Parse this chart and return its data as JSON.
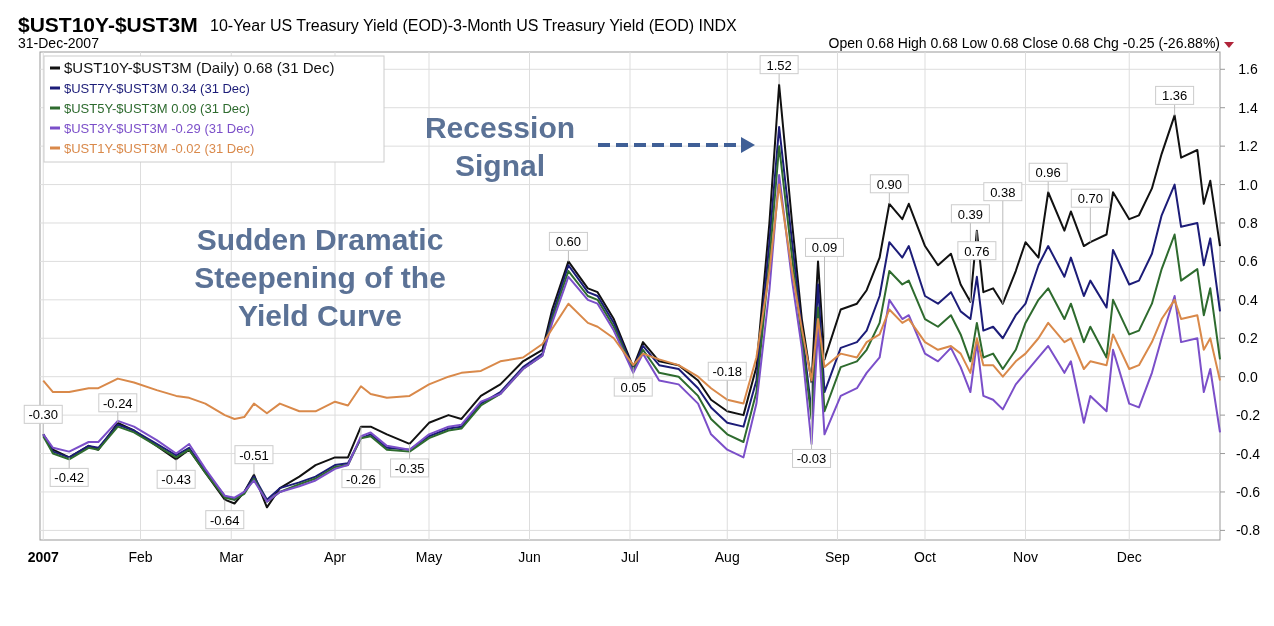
{
  "chart_data": {
    "type": "line",
    "title": "$UST10Y-$UST3M",
    "subtitle": "10-Year US Treasury Yield (EOD)-3-Month US Treasury Yield (EOD) INDX",
    "annotations": [
      "31-Dec-2007",
      "Open 0.68 High 0.68 Low 0.68 Close 0.68 Chg -0.25 (-26.88%)",
      "Sudden Dramatic Steepening of the Yield Curve",
      "Recession Signal"
    ],
    "x": [
      "2007-01-02",
      "2007-01-05",
      "2007-01-10",
      "2007-01-16",
      "2007-01-19",
      "2007-01-25",
      "2007-01-30",
      "2007-02-06",
      "2007-02-12",
      "2007-02-16",
      "2007-02-21",
      "2007-02-27",
      "2007-03-02",
      "2007-03-05",
      "2007-03-08",
      "2007-03-12",
      "2007-03-16",
      "2007-03-22",
      "2007-03-27",
      "2007-04-02",
      "2007-04-06",
      "2007-04-10",
      "2007-04-13",
      "2007-04-18",
      "2007-04-25",
      "2007-05-01",
      "2007-05-07",
      "2007-05-11",
      "2007-05-17",
      "2007-05-23",
      "2007-05-30",
      "2007-06-05",
      "2007-06-08",
      "2007-06-13",
      "2007-06-19",
      "2007-06-22",
      "2007-06-27",
      "2007-07-03",
      "2007-07-06",
      "2007-07-11",
      "2007-07-17",
      "2007-07-23",
      "2007-07-27",
      "2007-08-01",
      "2007-08-06",
      "2007-08-10",
      "2007-08-14",
      "2007-08-17",
      "2007-08-21",
      "2007-08-24",
      "2007-08-27",
      "2007-08-29",
      "2007-08-31",
      "2007-09-05",
      "2007-09-10",
      "2007-09-13",
      "2007-09-17",
      "2007-09-20",
      "2007-09-24",
      "2007-09-26",
      "2007-10-01",
      "2007-10-05",
      "2007-10-09",
      "2007-10-12",
      "2007-10-15",
      "2007-10-17",
      "2007-10-19",
      "2007-10-22",
      "2007-10-25",
      "2007-10-29",
      "2007-11-01",
      "2007-11-05",
      "2007-11-08",
      "2007-11-13",
      "2007-11-15",
      "2007-11-19",
      "2007-11-21",
      "2007-11-26",
      "2007-11-28",
      "2007-12-03",
      "2007-12-06",
      "2007-12-10",
      "2007-12-13",
      "2007-12-17",
      "2007-12-19",
      "2007-12-24",
      "2007-12-26",
      "2007-12-28",
      "2007-12-31"
    ],
    "series": [
      {
        "name": "$UST10Y-$UST3M (Daily) 0.68 (31 Dec)",
        "color": "#111111",
        "values": [
          -0.3,
          -0.38,
          -0.42,
          -0.36,
          -0.38,
          -0.24,
          -0.28,
          -0.36,
          -0.43,
          -0.38,
          -0.5,
          -0.64,
          -0.66,
          -0.6,
          -0.51,
          -0.68,
          -0.58,
          -0.52,
          -0.46,
          -0.42,
          -0.42,
          -0.26,
          -0.26,
          -0.3,
          -0.35,
          -0.24,
          -0.2,
          -0.22,
          -0.1,
          -0.04,
          0.08,
          0.14,
          0.35,
          0.6,
          0.46,
          0.44,
          0.3,
          0.05,
          0.18,
          0.08,
          0.06,
          -0.02,
          -0.12,
          -0.18,
          -0.2,
          0.05,
          0.8,
          1.52,
          0.8,
          0.3,
          -0.03,
          0.6,
          0.09,
          0.35,
          0.38,
          0.45,
          0.62,
          0.9,
          0.82,
          0.9,
          0.68,
          0.58,
          0.64,
          0.48,
          0.39,
          0.76,
          0.44,
          0.46,
          0.38,
          0.55,
          0.7,
          0.62,
          0.96,
          0.76,
          0.86,
          0.68,
          0.7,
          0.74,
          0.96,
          0.82,
          0.84,
          0.98,
          1.16,
          1.36,
          1.14,
          1.18,
          0.9,
          1.02,
          0.68
        ],
        "value_labels": [
          "-0.30",
          null,
          "-0.42",
          null,
          null,
          "-0.24",
          null,
          null,
          "-0.43",
          null,
          null,
          "-0.64",
          null,
          null,
          "-0.51",
          null,
          null,
          null,
          null,
          null,
          null,
          "-0.26",
          null,
          null,
          "-0.35",
          null,
          null,
          null,
          null,
          null,
          null,
          null,
          null,
          "0.60",
          null,
          null,
          null,
          "0.05",
          null,
          null,
          null,
          null,
          null,
          "-0.18",
          null,
          null,
          null,
          "1.52",
          null,
          null,
          "-0.03",
          null,
          "0.09",
          null,
          null,
          null,
          null,
          "0.90",
          null,
          null,
          null,
          null,
          null,
          null,
          "0.39",
          "0.76",
          null,
          null,
          "0.38",
          null,
          null,
          null,
          "0.96",
          null,
          null,
          null,
          "0.70",
          null,
          null,
          null,
          null,
          null,
          null,
          "1.36",
          null,
          null,
          null,
          null,
          null
        ]
      },
      {
        "name": "$UST7Y-$UST3M 0.34 (31 Dec)",
        "color": "#1c1c78",
        "values": [
          -0.3,
          -0.39,
          -0.42,
          -0.36,
          -0.37,
          -0.25,
          -0.28,
          -0.35,
          -0.41,
          -0.37,
          -0.49,
          -0.62,
          -0.64,
          -0.6,
          -0.52,
          -0.64,
          -0.58,
          -0.55,
          -0.52,
          -0.46,
          -0.45,
          -0.32,
          -0.3,
          -0.37,
          -0.38,
          -0.31,
          -0.27,
          -0.26,
          -0.14,
          -0.08,
          0.05,
          0.12,
          0.32,
          0.58,
          0.44,
          0.42,
          0.28,
          0.04,
          0.16,
          0.06,
          0.04,
          -0.06,
          -0.16,
          -0.24,
          -0.26,
          -0.02,
          0.7,
          1.3,
          0.7,
          0.25,
          -0.18,
          0.48,
          -0.08,
          0.15,
          0.18,
          0.24,
          0.42,
          0.7,
          0.62,
          0.68,
          0.42,
          0.38,
          0.44,
          0.34,
          0.3,
          0.52,
          0.24,
          0.26,
          0.2,
          0.32,
          0.38,
          0.58,
          0.68,
          0.52,
          0.62,
          0.42,
          0.5,
          0.36,
          0.66,
          0.48,
          0.5,
          0.64,
          0.84,
          1.0,
          0.78,
          0.8,
          0.58,
          0.72,
          0.34
        ]
      },
      {
        "name": "$UST5Y-$UST3M 0.09 (31 Dec)",
        "color": "#2e6b2e",
        "values": [
          -0.31,
          -0.4,
          -0.43,
          -0.37,
          -0.38,
          -0.26,
          -0.29,
          -0.36,
          -0.42,
          -0.38,
          -0.5,
          -0.63,
          -0.64,
          -0.61,
          -0.53,
          -0.65,
          -0.6,
          -0.56,
          -0.53,
          -0.47,
          -0.46,
          -0.32,
          -0.31,
          -0.38,
          -0.39,
          -0.32,
          -0.28,
          -0.27,
          -0.15,
          -0.09,
          0.04,
          0.11,
          0.3,
          0.55,
          0.42,
          0.4,
          0.26,
          0.03,
          0.14,
          0.02,
          0.0,
          -0.1,
          -0.22,
          -0.3,
          -0.34,
          -0.08,
          0.6,
          1.2,
          0.62,
          0.2,
          -0.22,
          0.36,
          -0.18,
          0.05,
          0.08,
          0.14,
          0.28,
          0.55,
          0.48,
          0.5,
          0.3,
          0.26,
          0.32,
          0.22,
          0.08,
          0.28,
          0.1,
          0.12,
          0.04,
          0.14,
          0.28,
          0.4,
          0.46,
          0.3,
          0.38,
          0.18,
          0.26,
          0.1,
          0.4,
          0.22,
          0.24,
          0.38,
          0.56,
          0.74,
          0.5,
          0.56,
          0.32,
          0.46,
          0.09
        ]
      },
      {
        "name": "$UST3Y-$UST3M -0.29 (31 Dec)",
        "color": "#7b4fc9",
        "values": [
          -0.3,
          -0.37,
          -0.39,
          -0.34,
          -0.34,
          -0.23,
          -0.26,
          -0.33,
          -0.4,
          -0.35,
          -0.48,
          -0.62,
          -0.63,
          -0.6,
          -0.54,
          -0.65,
          -0.6,
          -0.57,
          -0.54,
          -0.48,
          -0.46,
          -0.31,
          -0.29,
          -0.36,
          -0.38,
          -0.3,
          -0.26,
          -0.25,
          -0.13,
          -0.09,
          0.04,
          0.11,
          0.28,
          0.52,
          0.4,
          0.38,
          0.24,
          0.02,
          0.12,
          -0.02,
          -0.04,
          -0.14,
          -0.3,
          -0.38,
          -0.42,
          -0.14,
          0.45,
          1.05,
          0.5,
          0.15,
          -0.35,
          0.25,
          -0.3,
          -0.1,
          -0.06,
          0.02,
          0.1,
          0.4,
          0.3,
          0.32,
          0.12,
          0.08,
          0.15,
          0.05,
          -0.08,
          0.18,
          -0.1,
          -0.12,
          -0.17,
          -0.04,
          0.02,
          0.1,
          0.16,
          0.02,
          0.08,
          -0.24,
          -0.1,
          -0.18,
          0.14,
          -0.14,
          -0.16,
          0.02,
          0.2,
          0.42,
          0.18,
          0.2,
          -0.08,
          0.04,
          -0.29
        ]
      },
      {
        "name": "$UST1Y-$UST3M -0.02 (31 Dec)",
        "color": "#d9894a",
        "values": [
          -0.02,
          -0.08,
          -0.08,
          -0.06,
          -0.06,
          -0.01,
          -0.03,
          -0.07,
          -0.1,
          -0.11,
          -0.14,
          -0.2,
          -0.22,
          -0.21,
          -0.14,
          -0.19,
          -0.14,
          -0.18,
          -0.18,
          -0.13,
          -0.15,
          -0.05,
          -0.09,
          -0.11,
          -0.1,
          -0.04,
          0.0,
          0.02,
          0.03,
          0.08,
          0.1,
          0.17,
          0.25,
          0.38,
          0.28,
          0.26,
          0.2,
          0.06,
          0.12,
          0.09,
          0.06,
          0.0,
          -0.06,
          -0.12,
          -0.14,
          0.1,
          0.55,
          1.0,
          0.55,
          0.25,
          -0.02,
          0.3,
          0.05,
          0.12,
          0.1,
          0.18,
          0.22,
          0.35,
          0.28,
          0.3,
          0.18,
          0.14,
          0.16,
          0.12,
          0.02,
          0.2,
          0.06,
          0.06,
          0.0,
          0.08,
          0.12,
          0.2,
          0.28,
          0.18,
          0.2,
          0.04,
          0.08,
          0.06,
          0.22,
          0.04,
          0.06,
          0.18,
          0.3,
          0.4,
          0.3,
          0.32,
          0.14,
          0.2,
          -0.02
        ]
      }
    ],
    "xlim": [
      "2007-01-01",
      "2007-12-31"
    ],
    "xticks": [
      {
        "value": "2007-01-02",
        "label": "2007"
      },
      {
        "value": "2007-02-01",
        "label": "Feb"
      },
      {
        "value": "2007-03-01",
        "label": "Mar"
      },
      {
        "value": "2007-04-02",
        "label": "Apr"
      },
      {
        "value": "2007-05-01",
        "label": "May"
      },
      {
        "value": "2007-06-01",
        "label": "Jun"
      },
      {
        "value": "2007-07-02",
        "label": "Jul"
      },
      {
        "value": "2007-08-01",
        "label": "Aug"
      },
      {
        "value": "2007-09-04",
        "label": "Sep"
      },
      {
        "value": "2007-10-01",
        "label": "Oct"
      },
      {
        "value": "2007-11-01",
        "label": "Nov"
      },
      {
        "value": "2007-12-03",
        "label": "Dec"
      }
    ],
    "ylim": [
      -0.85,
      1.69
    ],
    "yticks": [
      -0.8,
      -0.6,
      -0.4,
      -0.2,
      {
        "value": 0,
        "label": "0.0"
      },
      0.2,
      0.4,
      0.6,
      0.8,
      {
        "value": 1,
        "label": "1.0"
      },
      1.2,
      1.4,
      1.6
    ],
    "grid": true,
    "legend": "top left",
    "marker": "none",
    "line_style": "solid"
  }
}
